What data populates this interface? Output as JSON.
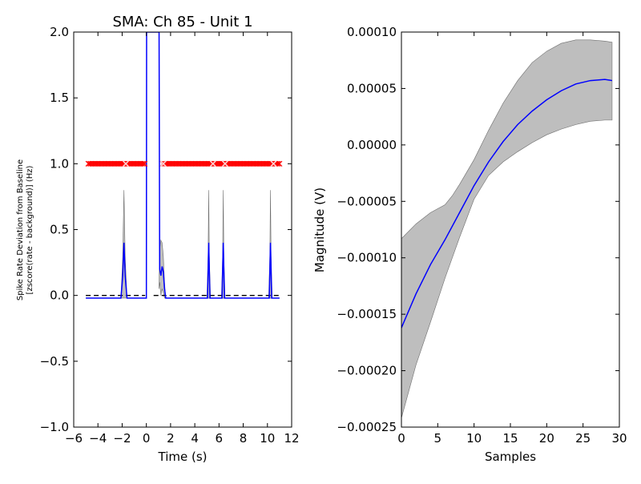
{
  "chart_data": [
    {
      "type": "line",
      "title": "SMA: Ch 85 - Unit 1",
      "xlabel": "Time (s)",
      "ylabel_line1": "Spike Rate Deviation from Baseline",
      "ylabel_line2": "[zscore(rate - background)] (Hz)",
      "xlim": [
        -6,
        12
      ],
      "ylim": [
        -1,
        2
      ],
      "xticks": [
        -6,
        -4,
        -2,
        0,
        2,
        4,
        6,
        8,
        10,
        12
      ],
      "yticks": [
        -1.0,
        -0.5,
        0.0,
        0.5,
        1.0,
        1.5,
        2.0
      ],
      "xtick_labels": [
        "−6",
        "−4",
        "−2",
        "0",
        "2",
        "4",
        "6",
        "8",
        "10",
        "12"
      ],
      "ytick_labels": [
        "−1.0",
        "−0.5",
        "0.0",
        "0.5",
        "1.0",
        "1.5",
        "2.0"
      ],
      "series": [
        {
          "role": "mean",
          "color": "#0000ff",
          "x": [
            -5,
            -2.1,
            -1.95,
            -1.85,
            -1.75,
            -1.6,
            -0.1,
            0.0,
            0.02,
            0.05,
            1.0,
            1.05,
            1.1,
            1.2,
            1.3,
            1.4,
            1.5,
            1.6,
            1.7,
            1.8,
            5.05,
            5.15,
            5.25,
            5.35,
            6.25,
            6.35,
            6.45,
            6.55,
            10.15,
            10.25,
            10.35,
            10.45,
            11
          ],
          "y": [
            -0.02,
            -0.02,
            0.15,
            0.4,
            0.15,
            -0.02,
            -0.02,
            -0.02,
            2.0,
            2.0,
            2.0,
            2.0,
            0.2,
            0.15,
            0.22,
            0.18,
            0.05,
            -0.02,
            -0.02,
            -0.02,
            -0.02,
            0.4,
            -0.02,
            -0.02,
            -0.02,
            0.4,
            -0.02,
            -0.02,
            -0.02,
            0.4,
            -0.02,
            -0.02,
            -0.02
          ]
        }
      ],
      "band": {
        "color": "#bebebe",
        "segments": [
          {
            "x": [
              -5,
              -2.1,
              -1.95,
              -1.85,
              -1.75,
              -1.6,
              -0.1
            ],
            "upper": [
              -0.02,
              -0.02,
              0.3,
              0.8,
              0.3,
              -0.02,
              -0.02
            ],
            "lower": [
              -0.02,
              -0.02,
              -0.02,
              -0.02,
              -0.02,
              -0.02,
              -0.02
            ]
          },
          {
            "x": [
              1.05,
              1.1,
              1.2,
              1.3,
              1.4,
              1.5,
              1.6,
              1.7,
              11
            ],
            "upper": [
              0.1,
              0.35,
              0.42,
              0.4,
              0.3,
              0.1,
              -0.02,
              -0.02,
              -0.02
            ],
            "lower": [
              0.05,
              0.1,
              0.0,
              0.05,
              0.02,
              -0.02,
              -0.02,
              -0.02,
              -0.02
            ]
          },
          {
            "x": [
              5.0,
              5.1,
              5.15,
              5.2,
              5.3,
              6.2,
              6.3,
              6.35,
              6.4,
              6.5,
              10.1,
              10.2,
              10.25,
              10.3,
              10.4
            ],
            "upper": [
              -0.02,
              0.3,
              0.8,
              0.3,
              -0.02,
              -0.02,
              0.3,
              0.8,
              0.3,
              -0.02,
              -0.02,
              0.3,
              0.8,
              0.3,
              -0.02
            ],
            "lower": [
              -0.02,
              -0.02,
              -0.02,
              -0.02,
              -0.02,
              -0.02,
              -0.02,
              -0.02,
              -0.02,
              -0.02,
              -0.02,
              -0.02,
              -0.02,
              -0.02,
              -0.02
            ]
          }
        ]
      },
      "baseline_dashed": {
        "color": "#000000",
        "y": 0.0,
        "xranges": [
          [
            -5,
            -0.1
          ],
          [
            0.6,
            11
          ]
        ]
      },
      "raster_markers": {
        "color": "#ff0000",
        "y": 1.0,
        "x_start": -4.8,
        "x_end": 11.0,
        "gaps": [
          [
            -0.1,
            1.3
          ]
        ],
        "count": 150,
        "highlight_x": [
          -1.7,
          1.4,
          5.5,
          6.5,
          10.5
        ]
      }
    },
    {
      "type": "line",
      "title": "",
      "xlabel": "Samples",
      "ylabel": "Magnitude (V)",
      "xlim": [
        0,
        30
      ],
      "ylim": [
        -0.00025,
        0.0001
      ],
      "xticks": [
        0,
        5,
        10,
        15,
        20,
        25,
        30
      ],
      "yticks": [
        -0.00025,
        -0.0002,
        -0.00015,
        -0.0001,
        -5e-05,
        0.0,
        5e-05,
        0.0001
      ],
      "xtick_labels": [
        "0",
        "5",
        "10",
        "15",
        "20",
        "25",
        "30"
      ],
      "ytick_labels": [
        "−0.00025",
        "−0.00020",
        "−0.00015",
        "−0.00010",
        "−0.00005",
        "0.00000",
        "0.00005",
        "0.00010"
      ],
      "series": [
        {
          "role": "mean",
          "color": "#0000ff",
          "x": [
            0,
            2,
            4,
            6,
            8,
            10,
            12,
            14,
            16,
            18,
            20,
            22,
            24,
            26,
            28,
            29
          ],
          "y": [
            -0.000162,
            -0.000132,
            -0.000106,
            -8.4e-05,
            -6e-05,
            -3.6e-05,
            -1.5e-05,
            3e-06,
            1.8e-05,
            3e-05,
            4e-05,
            4.8e-05,
            5.4e-05,
            5.7e-05,
            5.8e-05,
            5.7e-05
          ]
        }
      ],
      "band": {
        "color": "#bebebe",
        "segments": [
          {
            "x": [
              0,
              2,
              4,
              6,
              7,
              8,
              10,
              12,
              14,
              16,
              18,
              20,
              22,
              24,
              26,
              28,
              29
            ],
            "upper": [
              -8.3e-05,
              -7e-05,
              -6e-05,
              -5.3e-05,
              -4.5e-05,
              -3.5e-05,
              -1.3e-05,
              1.3e-05,
              3.7e-05,
              5.7e-05,
              7.3e-05,
              8.3e-05,
              9e-05,
              9.3e-05,
              9.3e-05,
              9.2e-05,
              9.1e-05
            ],
            "lower": [
              -0.000242,
              -0.000195,
              -0.000157,
              -0.000118,
              -0.0001,
              -8.2e-05,
              -4.8e-05,
              -2.7e-05,
              -1.5e-05,
              -6e-06,
              2e-06,
              9e-06,
              1.4e-05,
              1.8e-05,
              2.1e-05,
              2.2e-05,
              2.2e-05
            ]
          }
        ]
      }
    }
  ]
}
